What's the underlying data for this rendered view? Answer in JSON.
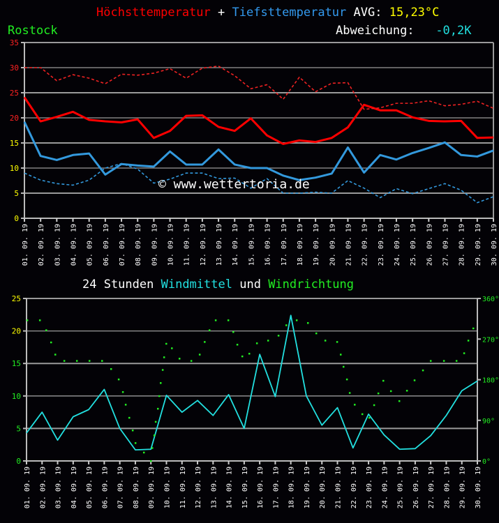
{
  "header": {
    "title_max": "Höchsttemperatur",
    "title_plus": "+",
    "title_min": "Tiefsttemperatur",
    "avg_label": "AVG:",
    "avg_value": "15,23°C",
    "location": "Rostock",
    "deviation_label": "Abweichung:",
    "deviation_value": "-0,2K",
    "watermark": "© www.wettertoria.de"
  },
  "wind_title": {
    "part1": "24 Stunden",
    "part2": "Windmittel",
    "part3": "und",
    "part4": "Windrichtung"
  },
  "colors": {
    "max": "#ff0000",
    "min": "#3399dd",
    "wind": "#22e0e0",
    "direction": "#22ee22",
    "yellow": "#ffff00",
    "green": "#22ee22",
    "white": "#ffffff",
    "background": "#030206",
    "grid": "#9a9a9a"
  },
  "chart_data": [
    {
      "type": "line",
      "categories": [
        "01.09.19",
        "02.09.19",
        "03.09.19",
        "04.09.19",
        "05.09.19",
        "06.09.19",
        "07.09.19",
        "08.09.19",
        "09.09.19",
        "10.09.19",
        "11.09.19",
        "12.09.19",
        "13.09.19",
        "14.09.19",
        "15.09.19",
        "16.09.19",
        "17.09.19",
        "18.09.19",
        "19.09.19",
        "20.09.19",
        "21.09.19",
        "22.09.19",
        "23.09.19",
        "24.09.19",
        "25.09.19",
        "26.09.19",
        "27.09.19",
        "28.09.19",
        "29.09.19",
        "30.09.19"
      ],
      "ylim": [
        0,
        35
      ],
      "yticks": [
        0,
        5,
        10,
        15,
        20,
        25,
        30,
        35
      ],
      "grid": true,
      "series": [
        {
          "name": "Höchsttemperatur",
          "style": "solid",
          "color": "#ff0000",
          "values": [
            24.1,
            19.3,
            20.2,
            21.2,
            19.6,
            19.3,
            19.1,
            19.7,
            16.0,
            17.4,
            20.4,
            20.5,
            18.2,
            17.4,
            19.9,
            16.5,
            14.8,
            15.5,
            15.2,
            16.0,
            18.1,
            22.6,
            21.5,
            21.5,
            20.1,
            19.4,
            19.3,
            19.4,
            16.0,
            16.1
          ]
        },
        {
          "name": "Tiefsttemperatur",
          "style": "solid",
          "color": "#3399dd",
          "values": [
            19.2,
            12.4,
            11.6,
            12.6,
            12.9,
            8.7,
            10.8,
            10.5,
            10.3,
            13.3,
            10.7,
            10.7,
            13.7,
            10.7,
            10.0,
            10.0,
            8.5,
            7.6,
            8.1,
            8.9,
            14.1,
            9.1,
            12.6,
            11.7,
            13.0,
            14.0,
            15.1,
            12.6,
            12.3,
            13.5
          ]
        },
        {
          "style": "dashed",
          "color": "#ee2222",
          "values": [
            30.0,
            30.0,
            27.4,
            28.6,
            27.9,
            26.8,
            28.7,
            28.5,
            28.9,
            29.8,
            27.9,
            29.9,
            30.3,
            28.4,
            25.8,
            26.6,
            23.7,
            28.1,
            25.2,
            26.9,
            27.0,
            21.7,
            22.0,
            22.9,
            22.9,
            23.4,
            22.4,
            22.7,
            23.3,
            21.9
          ]
        },
        {
          "style": "dashed",
          "color": "#3399dd",
          "values": [
            9.0,
            7.6,
            6.9,
            6.6,
            7.6,
            10.0,
            10.9,
            9.8,
            7.0,
            7.8,
            9.0,
            9.0,
            7.9,
            8.0,
            6.0,
            7.9,
            5.0,
            5.0,
            5.2,
            5.0,
            7.5,
            6.0,
            4.1,
            5.9,
            4.9,
            5.9,
            6.9,
            5.6,
            3.1,
            4.3
          ]
        }
      ]
    },
    {
      "type": "line",
      "title": "24 Stunden Windmittel und Windrichtung",
      "categories": [
        "01.09.19",
        "02.09.19",
        "03.09.19",
        "04.09.19",
        "05.09.19",
        "06.09.19",
        "07.09.19",
        "08.09.19",
        "09.09.19",
        "10.09.19",
        "11.09.19",
        "12.09.19",
        "13.09.19",
        "14.09.19",
        "15.09.19",
        "16.09.19",
        "17.09.19",
        "18.09.19",
        "19.09.19",
        "20.09.19",
        "21.09.19",
        "22.09.19",
        "23.09.19",
        "24.09.19",
        "25.09.19",
        "26.09.19",
        "27.09.19",
        "28.09.19",
        "29.09.19",
        "30.09.19"
      ],
      "ylim": [
        0,
        25
      ],
      "yticks": [
        0,
        5,
        10,
        15,
        20,
        25
      ],
      "y2lim": [
        0,
        360
      ],
      "y2ticks": [
        "0°",
        "90°",
        "180°",
        "270°",
        "360°"
      ],
      "grid": true,
      "series": [
        {
          "name": "Windmittel",
          "type": "line",
          "color": "#22e0e0",
          "values": [
            4.3,
            7.5,
            3.2,
            6.8,
            7.9,
            11.0,
            5.0,
            1.7,
            1.8,
            10.1,
            7.5,
            9.3,
            7.0,
            10.2,
            5.0,
            16.4,
            9.9,
            22.4,
            10.0,
            5.5,
            8.2,
            2.0,
            7.2,
            4.0,
            1.8,
            1.9,
            3.9,
            7.0,
            10.8,
            12.3
          ]
        },
        {
          "name": "Windrichtung",
          "type": "scatter",
          "axis": "y2",
          "color": "#22ee22",
          "points": [
            [
              1.04,
              312
            ],
            [
              1.85,
              312
            ],
            [
              2.26,
              290
            ],
            [
              2.57,
              263
            ],
            [
              2.84,
              236
            ],
            [
              3.42,
              222
            ],
            [
              4.23,
              222
            ],
            [
              5.04,
              222
            ],
            [
              5.85,
              222
            ],
            [
              6.43,
              204
            ],
            [
              6.92,
              181
            ],
            [
              7.19,
              153
            ],
            [
              7.37,
              125
            ],
            [
              7.6,
              96
            ],
            [
              7.82,
              68
            ],
            [
              8.0,
              40
            ],
            [
              8.54,
              19
            ],
            [
              8.99,
              0
            ],
            [
              9.08,
              29
            ],
            [
              9.21,
              57
            ],
            [
              9.3,
              87
            ],
            [
              9.44,
              116
            ],
            [
              9.53,
              144
            ],
            [
              9.62,
              173
            ],
            [
              9.75,
              202
            ],
            [
              9.84,
              230
            ],
            [
              9.98,
              260
            ],
            [
              10.34,
              250
            ],
            [
              10.83,
              227
            ],
            [
              11.59,
              222
            ],
            [
              12.13,
              236
            ],
            [
              12.45,
              264
            ],
            [
              12.76,
              290
            ],
            [
              13.16,
              312
            ],
            [
              13.97,
              312
            ],
            [
              14.29,
              286
            ],
            [
              14.55,
              258
            ],
            [
              14.87,
              232
            ],
            [
              15.32,
              238
            ],
            [
              15.81,
              261
            ],
            [
              16.53,
              267
            ],
            [
              17.2,
              278
            ],
            [
              17.7,
              301
            ],
            [
              18.37,
              312
            ],
            [
              19.09,
              306
            ],
            [
              19.63,
              283
            ],
            [
              20.21,
              267
            ],
            [
              20.97,
              264
            ],
            [
              21.2,
              236
            ],
            [
              21.38,
              209
            ],
            [
              21.6,
              181
            ],
            [
              21.78,
              151
            ],
            [
              22.1,
              125
            ],
            [
              22.59,
              104
            ],
            [
              23.04,
              96
            ],
            [
              23.35,
              124
            ],
            [
              23.62,
              150
            ],
            [
              23.94,
              178
            ],
            [
              24.43,
              155
            ],
            [
              24.97,
              133
            ],
            [
              25.46,
              156
            ],
            [
              25.95,
              179
            ],
            [
              26.49,
              201
            ],
            [
              26.99,
              222
            ],
            [
              27.84,
              222
            ],
            [
              28.65,
              222
            ],
            [
              29.14,
              239
            ],
            [
              29.41,
              267
            ],
            [
              29.73,
              294
            ]
          ]
        }
      ]
    }
  ]
}
